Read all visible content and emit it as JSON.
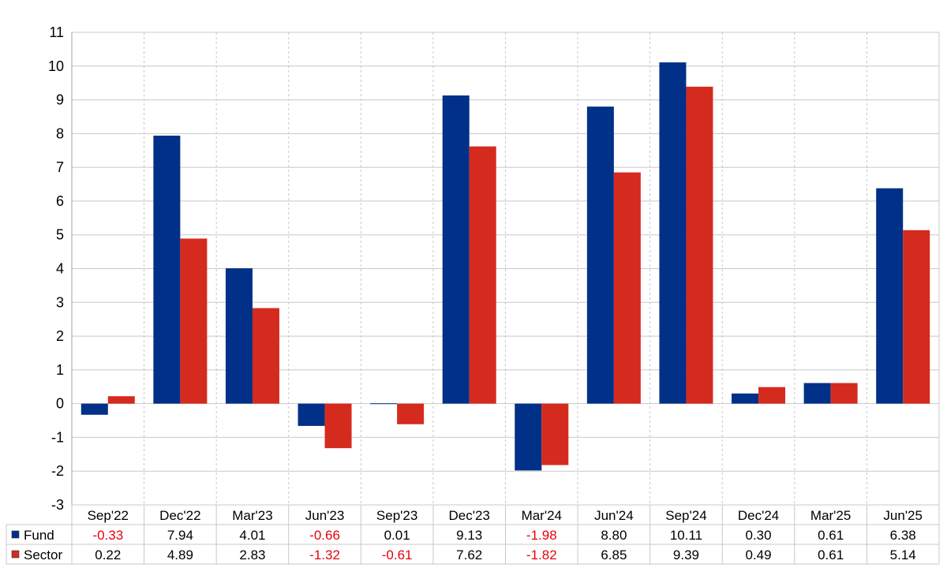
{
  "chart_data": {
    "type": "bar",
    "title": "",
    "xlabel": "",
    "ylabel": "",
    "categories": [
      "Sep'22",
      "Dec'22",
      "Mar'23",
      "Jun'23",
      "Sep'23",
      "Dec'23",
      "Mar'24",
      "Jun'24",
      "Sep'24",
      "Dec'24",
      "Mar'25",
      "Jun'25"
    ],
    "ylim": [
      -3,
      11
    ],
    "yticks": [
      "11",
      "10",
      "9",
      "8",
      "7",
      "6",
      "5",
      "4",
      "3",
      "2",
      "1",
      "0",
      "-1",
      "-2",
      "-3"
    ],
    "grid": true,
    "legend": "data-table-rows",
    "series": [
      {
        "name": "Fund",
        "color": "#003087",
        "values": [
          -0.33,
          7.94,
          4.01,
          -0.66,
          0.01,
          9.13,
          -1.98,
          8.8,
          10.11,
          0.3,
          0.61,
          6.38
        ],
        "labels": [
          "-0.33",
          "7.94",
          "4.01",
          "-0.66",
          "0.01",
          "9.13",
          "-1.98",
          "8.80",
          "10.11",
          "0.30",
          "0.61",
          "6.38"
        ]
      },
      {
        "name": "Sector",
        "color": "#d52b1e",
        "values": [
          0.22,
          4.89,
          2.83,
          -1.32,
          -0.61,
          7.62,
          -1.82,
          6.85,
          9.39,
          0.49,
          0.61,
          5.14
        ],
        "labels": [
          "0.22",
          "4.89",
          "2.83",
          "-1.32",
          "-0.61",
          "7.62",
          "-1.82",
          "6.85",
          "9.39",
          "0.49",
          "0.61",
          "5.14"
        ]
      }
    ],
    "negative_label_color": "#e8000b"
  }
}
